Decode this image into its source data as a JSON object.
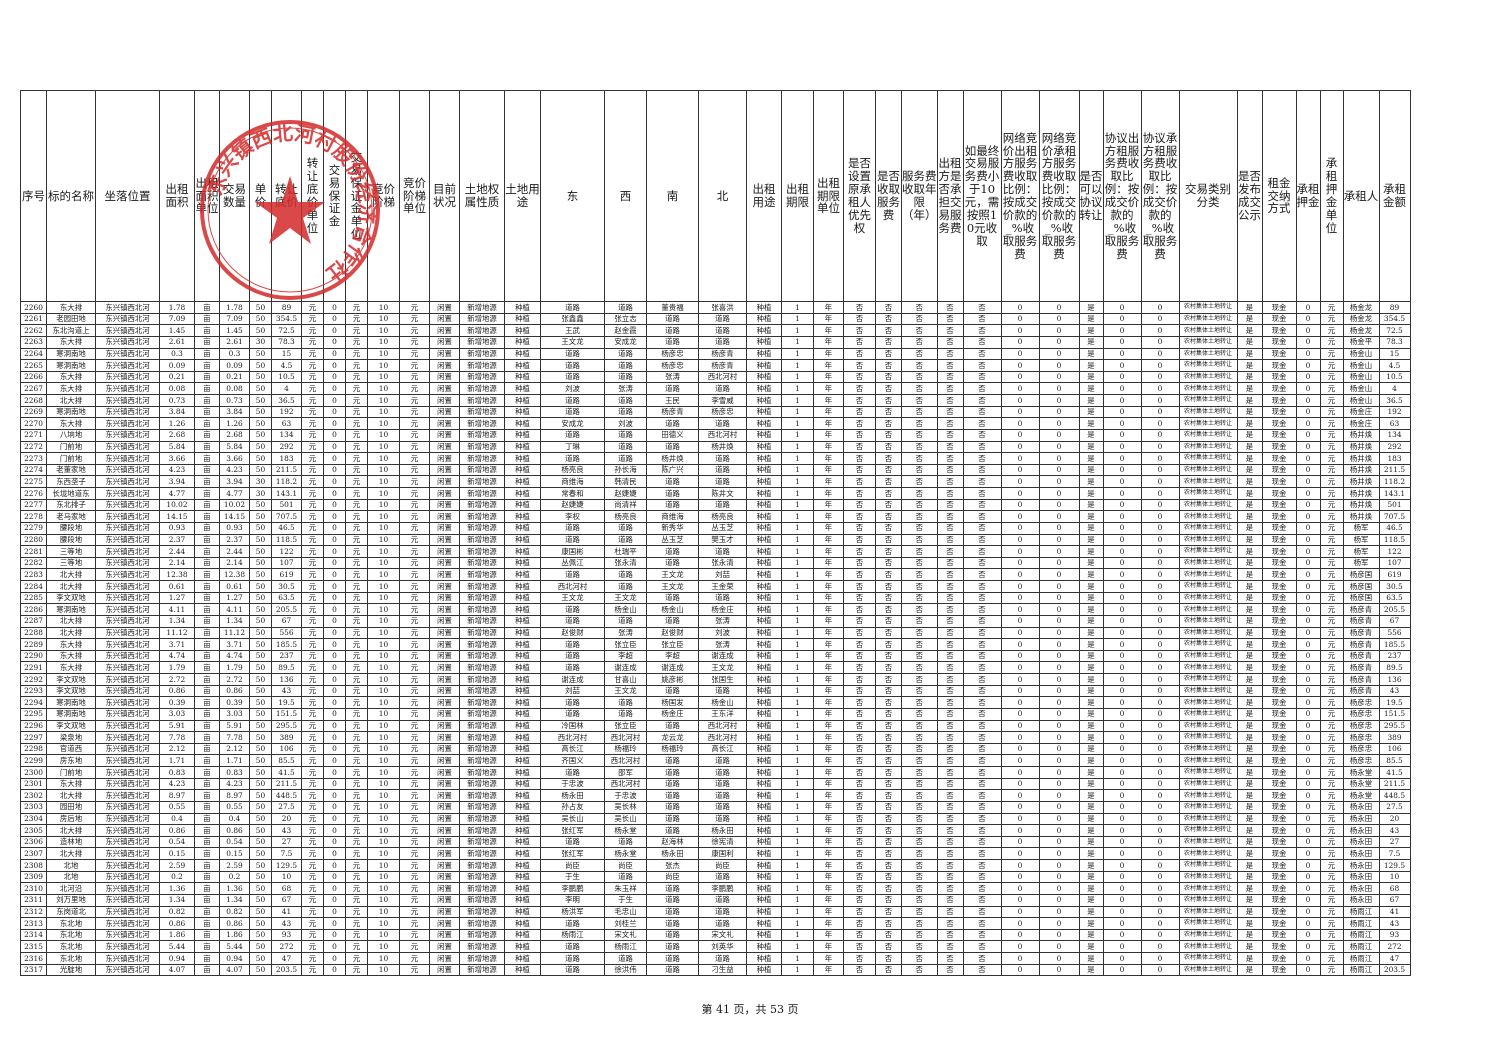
{
  "columns": [
    "序号",
    "标的名称",
    "坐落位置",
    "出租面积",
    "出租面积单位",
    "交易数量",
    "单价",
    "转让底价",
    "转让底价单位",
    "交易保证金",
    "交易保证金单位",
    "竞价阶梯",
    "竞价阶梯单位",
    "目前状况",
    "土地权属性质",
    "土地用途",
    "东",
    "西",
    "南",
    "北",
    "出租用途",
    "出租期限",
    "出租期限单位",
    "是否设置原承租人优先权",
    "是否收取服务费",
    "服务费收取年限（年）",
    "出租方是否承担交易服务费",
    "如最终交易服务费小于10元，需按照10元收取",
    "网络竞价出租方服务费收取比例：按成交价款的_%收取服务费",
    "网络竞价承租方服务费收取比例：按成交价款的_%收取服务费",
    "是否可以协议转让",
    "协议出方租服务费收取比例：按成交价款的_%收取服务费",
    "协议承方租服务费收取比例：按成交价款的_%收取服务费",
    "交易类别分类",
    "是否发布成交公示",
    "租金交纳方式",
    "承租押金",
    "承租押金单位",
    "承租人",
    "承租金额"
  ],
  "common": {
    "location": "东兴镇西北河",
    "area_unit": "亩",
    "price_unit": "元",
    "deposit": "0",
    "step": "10",
    "status": "闲置",
    "ownership": "新增地源",
    "use": "种植",
    "term": "1",
    "term_unit": "年",
    "no": "否",
    "yes": "是",
    "rate": "0",
    "category": "农村集体土地转让",
    "pay": "现金"
  },
  "rows": [
    [
      "2260",
      "东大排",
      "1.78",
      "50",
      "89",
      "道路",
      "道路",
      "董贵福",
      "张喜洪",
      "杨金龙"
    ],
    [
      "2261",
      "老园田地",
      "7.09",
      "50",
      "354.5",
      "张鑫鑫",
      "张立志",
      "道路",
      "道路",
      "杨金龙"
    ],
    [
      "2262",
      "东北沟道上",
      "1.45",
      "50",
      "72.5",
      "王武",
      "赵金霞",
      "道路",
      "道路",
      "杨金龙"
    ],
    [
      "2263",
      "东大排",
      "2.61",
      "30",
      "78.3",
      "王文龙",
      "安成龙",
      "道路",
      "道路",
      "杨金平"
    ],
    [
      "2264",
      "寒洞南地",
      "0.3",
      "50",
      "15",
      "道路",
      "道路",
      "杨彦忠",
      "杨彦青",
      "杨金山"
    ],
    [
      "2265",
      "寒洞南地",
      "0.09",
      "50",
      "4.5",
      "道路",
      "道路",
      "杨彦忠",
      "杨彦青",
      "杨金山"
    ],
    [
      "2266",
      "东大排",
      "0.21",
      "50",
      "10.5",
      "道路",
      "道路",
      "张涛",
      "西北河村",
      "杨金山"
    ],
    [
      "2267",
      "东大排",
      "0.08",
      "50",
      "4",
      "刘波",
      "张涛",
      "道路",
      "道路",
      "杨金山"
    ],
    [
      "2268",
      "北大排",
      "0.73",
      "50",
      "36.5",
      "道路",
      "道路",
      "王民",
      "李雪威",
      "杨金山"
    ],
    [
      "2269",
      "寒洞南地",
      "3.84",
      "50",
      "192",
      "道路",
      "道路",
      "杨彦青",
      "杨彦忠",
      "杨金庄"
    ],
    [
      "2270",
      "东大排",
      "1.26",
      "50",
      "63",
      "安成龙",
      "刘波",
      "道路",
      "道路",
      "杨金庄"
    ],
    [
      "2271",
      "八垧地",
      "2.68",
      "50",
      "134",
      "道路",
      "道路",
      "田德义",
      "西北河村",
      "杨井焕"
    ],
    [
      "2272",
      "门前地",
      "5.84",
      "50",
      "292",
      "丁琳",
      "道路",
      "道路",
      "杨井焕",
      "杨井焕"
    ],
    [
      "2273",
      "门前地",
      "3.66",
      "50",
      "183",
      "道路",
      "道路",
      "杨井焕",
      "道路",
      "杨井焕"
    ],
    [
      "2274",
      "老董家地",
      "4.23",
      "50",
      "211.5",
      "杨亮良",
      "孙长海",
      "陈广兴",
      "道路",
      "杨井焕"
    ],
    [
      "2275",
      "东西垄子",
      "3.94",
      "30",
      "118.2",
      "商维海",
      "韩清民",
      "道路",
      "道路",
      "杨井焕"
    ],
    [
      "2276",
      "长垅地道东",
      "4.77",
      "30",
      "143.1",
      "常春和",
      "赵婕婕",
      "道路",
      "陈井文",
      "杨井焕"
    ],
    [
      "2277",
      "东北排子",
      "10.02",
      "50",
      "501",
      "赵婕婕",
      "尚清祥",
      "道路",
      "道路",
      "杨井焕"
    ],
    [
      "2278",
      "老马家地",
      "14.15",
      "50",
      "707.5",
      "李权",
      "杨亮良",
      "商维海",
      "杨亮良",
      "杨井焕"
    ],
    [
      "2279",
      "腰段地",
      "0.93",
      "50",
      "46.5",
      "道路",
      "道路",
      "新秀华",
      "丛玉芝",
      "杨军"
    ],
    [
      "2280",
      "腰段地",
      "2.37",
      "50",
      "118.5",
      "道路",
      "道路",
      "丛玉芝",
      "樊玉才",
      "杨军"
    ],
    [
      "2281",
      "三等地",
      "2.44",
      "50",
      "122",
      "康国彬",
      "杜瑞平",
      "道路",
      "道路",
      "杨军"
    ],
    [
      "2282",
      "三等地",
      "2.14",
      "50",
      "107",
      "丛佩江",
      "张永清",
      "道路",
      "张永清",
      "杨军"
    ],
    [
      "2283",
      "北大排",
      "12.38",
      "50",
      "619",
      "道路",
      "道路",
      "王文龙",
      "刘喆",
      "杨彦国"
    ],
    [
      "2284",
      "北大排",
      "0.61",
      "50",
      "30.5",
      "西北河村",
      "道路",
      "王文龙",
      "王金荣",
      "杨彦国"
    ],
    [
      "2285",
      "李文双地",
      "1.27",
      "50",
      "63.5",
      "王文龙",
      "王文龙",
      "道路",
      "道路",
      "杨彦国"
    ],
    [
      "2286",
      "寒洞南地",
      "4.11",
      "50",
      "205.5",
      "道路",
      "杨金山",
      "杨金山",
      "杨金庄",
      "杨彦青"
    ],
    [
      "2287",
      "北大排",
      "1.34",
      "50",
      "67",
      "道路",
      "道路",
      "道路",
      "张涛",
      "杨彦青"
    ],
    [
      "2288",
      "北大排",
      "11.12",
      "50",
      "556",
      "赵俊财",
      "张涛",
      "赵俊财",
      "刘波",
      "杨彦青"
    ],
    [
      "2289",
      "东大排",
      "3.71",
      "50",
      "185.5",
      "道路",
      "张立臣",
      "张立臣",
      "张涛",
      "杨彦青"
    ],
    [
      "2290",
      "东大排",
      "4.74",
      "50",
      "237",
      "道路",
      "李超",
      "李超",
      "谢连成",
      "杨彦青"
    ],
    [
      "2291",
      "东大排",
      "1.79",
      "50",
      "89.5",
      "道路",
      "谢连成",
      "谢连成",
      "王文龙",
      "杨彦青"
    ],
    [
      "2292",
      "李文双地",
      "2.72",
      "50",
      "136",
      "谢连成",
      "甘喜山",
      "姚彦彬",
      "张国生",
      "杨彦青"
    ],
    [
      "2293",
      "李文双地",
      "0.86",
      "50",
      "43",
      "刘喆",
      "王文龙",
      "道路",
      "道路",
      "杨彦青"
    ],
    [
      "2294",
      "寒洞南地",
      "0.39",
      "50",
      "19.5",
      "道路",
      "道路",
      "杨国发",
      "杨金山",
      "杨彦忠"
    ],
    [
      "2295",
      "寒洞南地",
      "3.03",
      "50",
      "151.5",
      "道路",
      "道路",
      "杨金庄",
      "王东洋",
      "杨彦忠"
    ],
    [
      "2296",
      "李文双地",
      "5.91",
      "50",
      "295.5",
      "冷国林",
      "张立臣",
      "道路",
      "西北河村",
      "杨彦忠"
    ],
    [
      "2297",
      "梁泉地",
      "7.78",
      "50",
      "389",
      "西北河村",
      "西北河村",
      "龙云龙",
      "西北河村",
      "杨彦忠"
    ],
    [
      "2298",
      "官道西",
      "2.12",
      "50",
      "106",
      "高长江",
      "杨福玲",
      "杨福玲",
      "高长江",
      "杨彦忠"
    ],
    [
      "2299",
      "房东地",
      "1.71",
      "50",
      "85.5",
      "齐国义",
      "西北河村",
      "道路",
      "道路",
      "杨彦忠"
    ],
    [
      "2300",
      "门前地",
      "0.83",
      "50",
      "41.5",
      "道路",
      "邵军",
      "道路",
      "道路",
      "杨永堂"
    ],
    [
      "2301",
      "东大排",
      "4.23",
      "50",
      "211.5",
      "于忠波",
      "西北河村",
      "道路",
      "道路",
      "杨永堂"
    ],
    [
      "2302",
      "北大排",
      "8.97",
      "50",
      "448.5",
      "杨永田",
      "于忠波",
      "道路",
      "道路",
      "杨永堂"
    ],
    [
      "2303",
      "园田地",
      "0.55",
      "50",
      "27.5",
      "孙占友",
      "吴长林",
      "道路",
      "道路",
      "杨永田"
    ],
    [
      "2304",
      "房后地",
      "0.4",
      "50",
      "20",
      "吴长山",
      "吴长山",
      "道路",
      "道路",
      "杨永田"
    ],
    [
      "2305",
      "北大排",
      "0.86",
      "50",
      "43",
      "张红军",
      "杨永堂",
      "道路",
      "杨永田",
      "杨永田"
    ],
    [
      "2306",
      "造林地",
      "0.54",
      "50",
      "27",
      "道路",
      "道路",
      "赵海林",
      "徐宪清",
      "杨永田"
    ],
    [
      "2307",
      "北大排",
      "0.15",
      "50",
      "7.5",
      "张红军",
      "杨永堂",
      "杨永田",
      "康国利",
      "杨永田"
    ],
    [
      "2308",
      "北地",
      "2.59",
      "50",
      "129.5",
      "尚臣",
      "尚臣",
      "张杰",
      "尚臣",
      "杨永田"
    ],
    [
      "2309",
      "北地",
      "0.2",
      "50",
      "10",
      "于生",
      "道路",
      "尚臣",
      "道路",
      "杨永田"
    ],
    [
      "2310",
      "北河沿",
      "1.36",
      "50",
      "68",
      "李鹏鹏",
      "朱玉祥",
      "道路",
      "李鹏鹏",
      "杨永田"
    ],
    [
      "2311",
      "刘万里地",
      "1.34",
      "50",
      "67",
      "李明",
      "于生",
      "道路",
      "道路",
      "杨永田"
    ],
    [
      "2312",
      "东岗道北",
      "0.82",
      "50",
      "41",
      "杨洪军",
      "毛忠山",
      "道路",
      "道路",
      "杨雨江"
    ],
    [
      "2313",
      "东北地",
      "0.86",
      "50",
      "43",
      "道路",
      "刘桂兰",
      "道路",
      "道路",
      "杨雨江"
    ],
    [
      "2314",
      "东北地",
      "1.86",
      "50",
      "93",
      "杨雨江",
      "宋文礼",
      "道路",
      "宋文礼",
      "杨雨江"
    ],
    [
      "2315",
      "东北地",
      "5.44",
      "50",
      "272",
      "道路",
      "杨雨江",
      "道路",
      "刘英华",
      "杨雨江"
    ],
    [
      "2316",
      "东北地",
      "0.94",
      "50",
      "47",
      "道路",
      "道路",
      "道路",
      "道路",
      "杨雨江"
    ],
    [
      "2317",
      "光腚地",
      "4.07",
      "50",
      "203.5",
      "道路",
      "徐洪伟",
      "道路",
      "刁生益",
      "杨雨江"
    ]
  ],
  "footer": "第 41 页，共 53 页",
  "seal_text": "东兴镇西北河村股份经济合作社",
  "colors": {
    "seal": "#d42a2a"
  }
}
